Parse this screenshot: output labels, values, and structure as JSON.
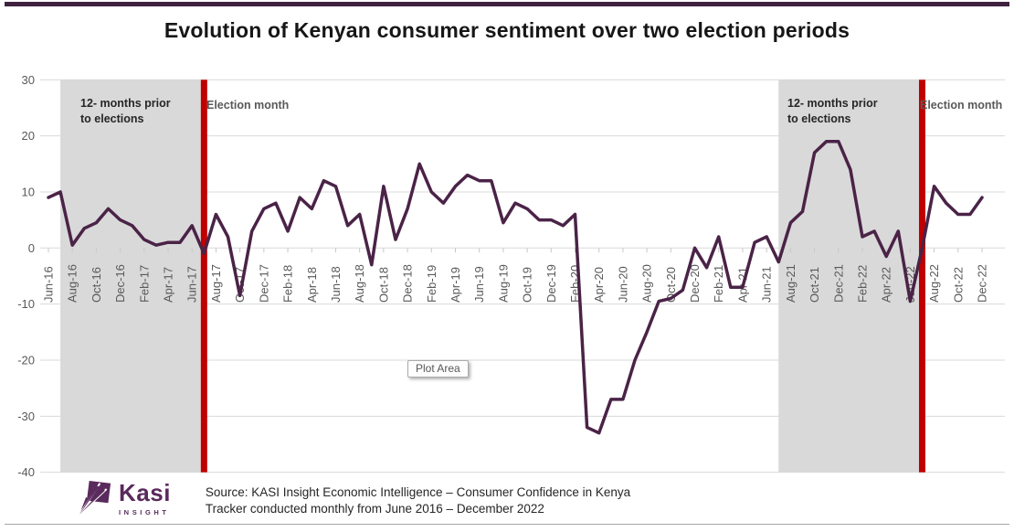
{
  "title": "Evolution of Kenyan consumer sentiment over two election periods",
  "annotations": {
    "pre_election_label": "12- months prior\nto elections",
    "election_month_label": "Election month",
    "plot_area_tooltip": "Plot Area"
  },
  "footer": {
    "logo_text": "Kasi",
    "logo_subtext": "INSIGHT",
    "source_line1": "Source: KASI Insight Economic Intelligence – Consumer Confidence in Kenya",
    "source_line2": "Tracker conducted monthly from June 2016 – December 2022"
  },
  "colors": {
    "line": "#4a2347",
    "election_line": "#c00000",
    "pre_election_band": "#d9d9d9",
    "gridline": "#d9d9d9",
    "tick": "#c8c8c8",
    "axis_text": "#595959",
    "top_bar": "#3f2140",
    "logo_purple": "#5a2a5c"
  },
  "chart_data": {
    "type": "line",
    "title": "Evolution of Kenyan consumer sentiment over two election periods",
    "ylim": [
      -40,
      30
    ],
    "yticks": [
      30,
      20,
      10,
      0,
      -10,
      -20,
      -30,
      -40
    ],
    "grid": true,
    "xtick_every": 2,
    "x": [
      "Jun-16",
      "Jul-16",
      "Aug-16",
      "Sep-16",
      "Oct-16",
      "Nov-16",
      "Dec-16",
      "Jan-17",
      "Feb-17",
      "Mar-17",
      "Apr-17",
      "May-17",
      "Jun-17",
      "Jul-17",
      "Aug-17",
      "Sep-17",
      "Oct-17",
      "Nov-17",
      "Dec-17",
      "Jan-18",
      "Feb-18",
      "Mar-18",
      "Apr-18",
      "May-18",
      "Jun-18",
      "Jul-18",
      "Aug-18",
      "Sep-18",
      "Oct-18",
      "Nov-18",
      "Dec-18",
      "Jan-19",
      "Feb-19",
      "Mar-19",
      "Apr-19",
      "May-19",
      "Jun-19",
      "Jul-19",
      "Aug-19",
      "Sep-19",
      "Oct-19",
      "Nov-19",
      "Dec-19",
      "Jan-20",
      "Feb-20",
      "Mar-20",
      "Apr-20",
      "May-20",
      "Jun-20",
      "Jul-20",
      "Aug-20",
      "Sep-20",
      "Oct-20",
      "Nov-20",
      "Dec-20",
      "Jan-21",
      "Feb-21",
      "Mar-21",
      "Apr-21",
      "May-21",
      "Jun-21",
      "Jul-21",
      "Aug-21",
      "Sep-21",
      "Oct-21",
      "Nov-21",
      "Dec-21",
      "Jan-22",
      "Feb-22",
      "Mar-22",
      "Apr-22",
      "May-22",
      "Jun-22",
      "Jul-22",
      "Aug-22",
      "Sep-22",
      "Oct-22",
      "Nov-22",
      "Dec-22"
    ],
    "series": [
      {
        "name": "Consumer confidence in Kenya",
        "values": [
          9,
          10,
          0.5,
          3.5,
          4.5,
          7,
          5,
          4,
          1.5,
          0.5,
          1,
          1,
          4,
          -1,
          6,
          2,
          -8.5,
          3,
          7,
          8,
          3,
          9,
          7,
          12,
          11,
          4,
          6,
          -3,
          11,
          1.5,
          7,
          15,
          10,
          8,
          11,
          13,
          12,
          12,
          4.5,
          8,
          7,
          5,
          5,
          4,
          6,
          -32,
          -33,
          -27,
          -27,
          -20,
          -15,
          -9.5,
          -9,
          -7.5,
          0,
          -3.5,
          2,
          -7,
          -7,
          1,
          2,
          -2.5,
          4.5,
          6.5,
          17,
          19,
          19,
          14,
          2,
          3,
          -1.5,
          3,
          -9.5,
          0,
          11,
          8,
          6,
          6,
          9
        ]
      }
    ],
    "pre_election_windows": [
      {
        "start": "Jul-16",
        "end": "Jul-17",
        "label": "12- months prior\nto elections"
      },
      {
        "start": "Jul-21",
        "end": "Jul-22",
        "label": "12- months prior\nto elections"
      }
    ],
    "election_month_lines": [
      "Jul-17",
      "Jul-22"
    ]
  }
}
